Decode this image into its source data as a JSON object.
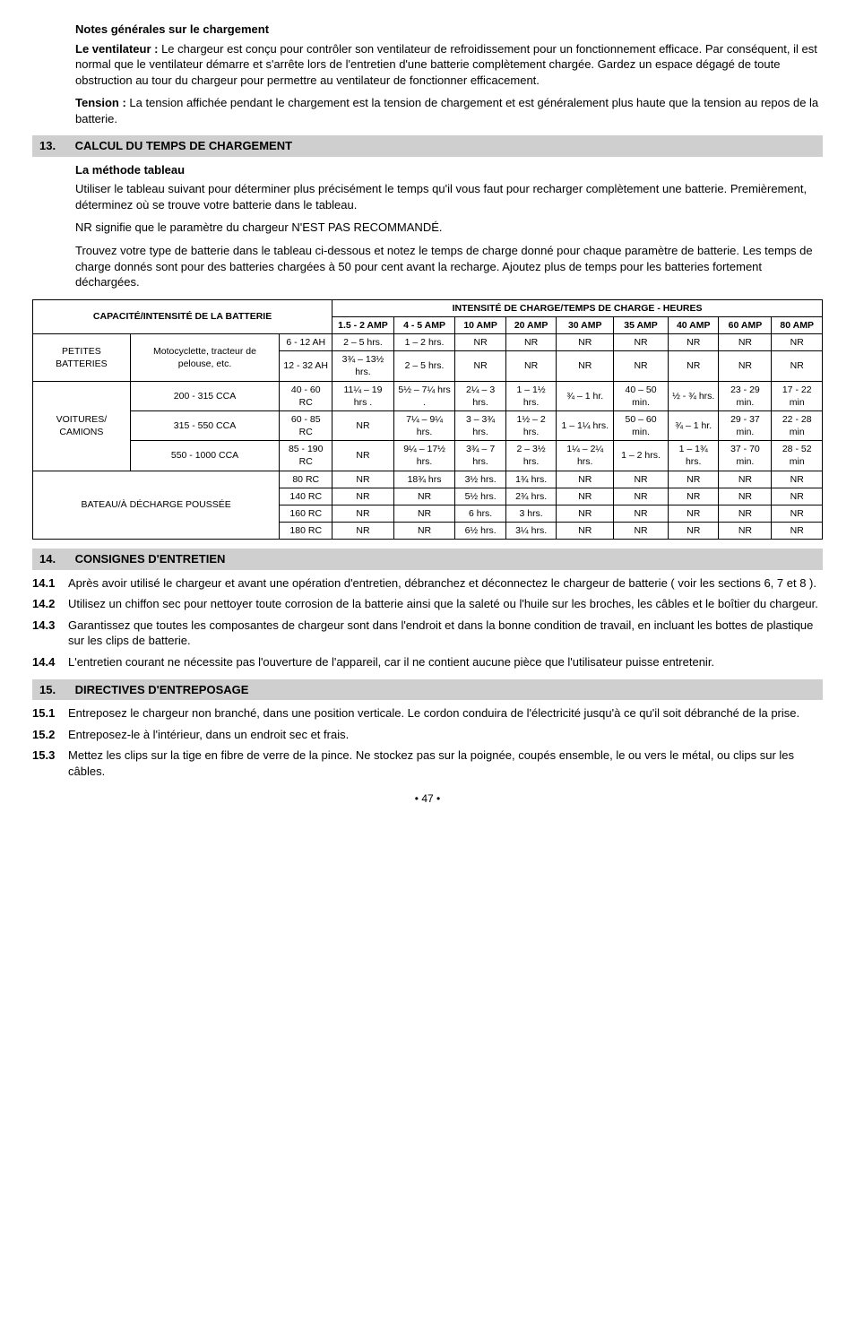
{
  "notes": {
    "heading": "Notes générales sur le chargement",
    "p1_lead": "Le ventilateur :",
    "p1_body": " Le chargeur est conçu pour contrôler son ventilateur de refroidissement pour un fonctionnement efficace. Par conséquent, il est normal que le ventilateur démarre et s'arrête lors de l'entretien d'une batterie complètement chargée. Gardez un espace dégagé de toute obstruction au tour du chargeur pour permettre au ventilateur de fonctionner efficacement.",
    "p2_lead": "Tension :",
    "p2_body": " La tension affichée pendant le chargement est la tension de chargement et est généralement plus haute que la tension au repos de la batterie."
  },
  "sec13": {
    "num": "13.",
    "title": "CALCUL DU TEMPS DE CHARGEMENT",
    "subhead": "La méthode tableau",
    "p1": "Utiliser le tableau suivant pour déterminer plus précisément le temps qu'il vous faut pour recharger complètement une batterie. Premièrement, déterminez où se trouve votre batterie dans le tableau.",
    "p2": "NR signifie que le paramètre du chargeur N'EST PAS RECOMMANDÉ.",
    "p3": "Trouvez votre type de batterie dans le tableau ci-dessous et notez le temps de charge donné pour chaque paramètre de batterie. Les temps de charge donnés sont pour des batteries chargées à 50 pour cent avant la recharge. Ajoutez plus de temps pour les batteries fortement déchargées."
  },
  "table": {
    "caption_left": "CAPACITÉ/INTENSITÉ DE LA BATTERIE",
    "caption_right": "INTENSITÉ DE CHARGE/TEMPS DE CHARGE - HEURES",
    "amp_headers": [
      "1.5 - 2 AMP",
      "4 - 5 AMP",
      "10 AMP",
      "20 AMP",
      "30 AMP",
      "35 AMP",
      "40 AMP",
      "60 AMP",
      "80 AMP"
    ],
    "group_petites": "PETITES BATTERIES",
    "petites_sub": "Motocyclette, tracteur de pelouse, etc.",
    "petites_rows": [
      {
        "rating": "6 - 12 AH",
        "cells": [
          "2 – 5 hrs.",
          "1 – 2 hrs.",
          "NR",
          "NR",
          "NR",
          "NR",
          "NR",
          "NR",
          "NR"
        ]
      },
      {
        "rating": "12 - 32 AH",
        "cells": [
          "3¾ – 13½ hrs.",
          "2 – 5 hrs.",
          "NR",
          "NR",
          "NR",
          "NR",
          "NR",
          "NR",
          "NR"
        ]
      }
    ],
    "group_voitures": "VOITURES/ CAMIONS",
    "voitures_rows": [
      {
        "rating": "200 - 315 CCA",
        "rc": "40 - 60 RC",
        "cells": [
          "11¼ – 19 hrs .",
          "5½ – 7¼ hrs .",
          "2¼ – 3 hrs.",
          "1 – 1½ hrs.",
          "¾ – 1 hr.",
          "40 – 50 min.",
          "½ - ¾ hrs.",
          "23 - 29 min.",
          "17 - 22 min"
        ]
      },
      {
        "rating": "315 - 550 CCA",
        "rc": "60 - 85 RC",
        "cells": [
          "NR",
          "7¼ – 9¼ hrs.",
          "3 – 3¾ hrs.",
          "1½ – 2 hrs.",
          "1 – 1¼ hrs.",
          "50 – 60 min.",
          "¾ – 1 hr.",
          "29 - 37 min.",
          "22 - 28 min"
        ]
      },
      {
        "rating": "550 - 1000 CCA",
        "rc": "85 - 190 RC",
        "cells": [
          "NR",
          "9¼ – 17½ hrs.",
          "3¾ – 7 hrs.",
          "2 – 3½ hrs.",
          "1¼ – 2¼ hrs.",
          "1 – 2 hrs.",
          "1 – 1¾ hrs.",
          "37 - 70 min.",
          "28 - 52 min"
        ]
      }
    ],
    "group_bateau": "BATEAU/À DÉCHARGE POUSSÉE",
    "bateau_rows": [
      {
        "rc": "80 RC",
        "cells": [
          "NR",
          "18¾ hrs",
          "3½ hrs.",
          "1¾ hrs.",
          "NR",
          "NR",
          "NR",
          "NR",
          "NR"
        ]
      },
      {
        "rc": "140 RC",
        "cells": [
          "NR",
          "NR",
          "5½ hrs.",
          "2¾ hrs.",
          "NR",
          "NR",
          "NR",
          "NR",
          "NR"
        ]
      },
      {
        "rc": "160 RC",
        "cells": [
          "NR",
          "NR",
          "6 hrs.",
          "3 hrs.",
          "NR",
          "NR",
          "NR",
          "NR",
          "NR"
        ]
      },
      {
        "rc": "180 RC",
        "cells": [
          "NR",
          "NR",
          "6½ hrs.",
          "3¼ hrs.",
          "NR",
          "NR",
          "NR",
          "NR",
          "NR"
        ]
      }
    ]
  },
  "sec14": {
    "num": "14.",
    "title": "CONSIGNES D'ENTRETIEN",
    "items": [
      {
        "n": "14.1",
        "t": "Après avoir utilisé le chargeur et avant une opération d'entretien, débranchez et déconnectez le chargeur de batterie ( voir les sections 6, 7 et 8 )."
      },
      {
        "n": "14.2",
        "t": "Utilisez un chiffon sec pour nettoyer toute corrosion de la batterie ainsi que la saleté ou l'huile sur les broches, les câbles et le boîtier du chargeur."
      },
      {
        "n": "14.3",
        "t": "Garantissez que toutes les composantes de chargeur sont dans l'endroit et dans la bonne condition de travail, en incluant les bottes de plastique sur les clips de batterie."
      },
      {
        "n": "14.4",
        "t": "L'entretien courant ne nécessite pas l'ouverture de l'appareil, car il ne contient aucune pièce que l'utilisateur puisse entretenir."
      }
    ]
  },
  "sec15": {
    "num": "15.",
    "title": "DIRECTIVES D'ENTREPOSAGE",
    "items": [
      {
        "n": "15.1",
        "t": "Entreposez le chargeur non branché, dans une position verticale. Le cordon conduira de l'électricité jusqu'à ce qu'il soit débranché de la prise."
      },
      {
        "n": "15.2",
        "t": "Entreposez-le à l'intérieur, dans un endroit sec et frais."
      },
      {
        "n": "15.3",
        "t": "Mettez les clips sur la tige en fibre de verre de la pince. Ne stockez pas sur la poignée, coupés ensemble, le ou vers le métal, ou clips sur les câbles."
      }
    ]
  },
  "page": "• 47 •"
}
